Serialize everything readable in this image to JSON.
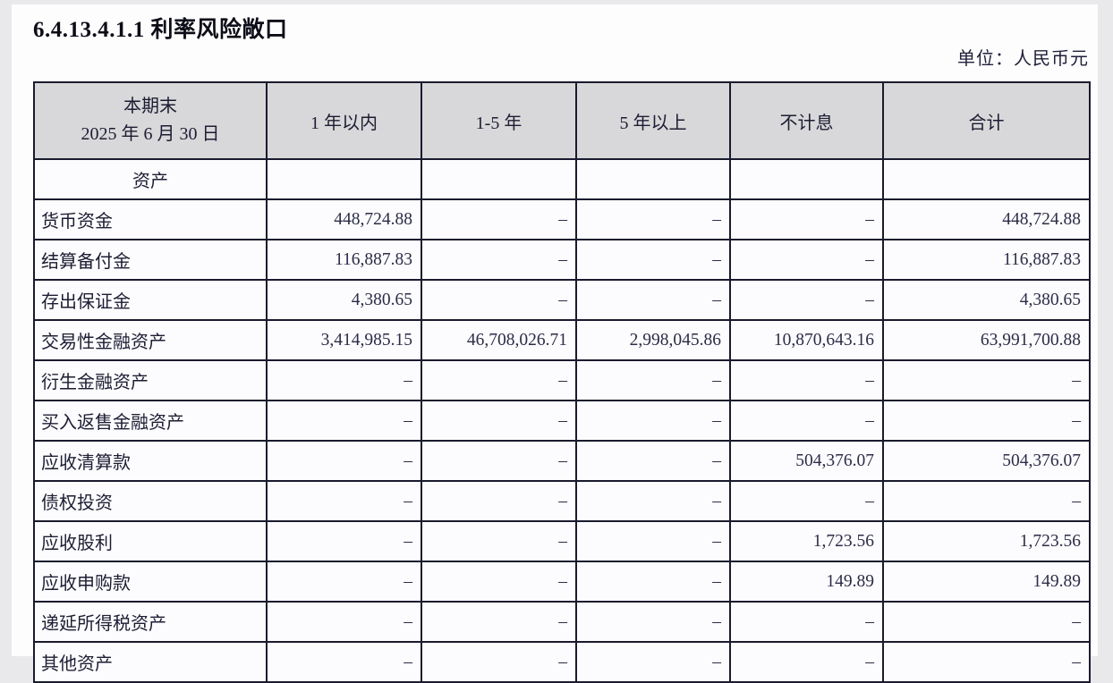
{
  "title": "6.4.13.4.1.1 利率风险敞口",
  "unit_label": "单位：人民币元",
  "colors": {
    "header_background": "#d8d8da",
    "table_border": "#1a1a2e",
    "cell_background": "#fcfcfe",
    "text": "#1d1d33"
  },
  "table": {
    "corner_header": {
      "line1": "本期末",
      "line2": "2025 年 6 月 30 日"
    },
    "columns": [
      "1 年以内",
      "1-5 年",
      "5 年以上",
      "不计息",
      "合计"
    ],
    "section_label": "资产",
    "rows": [
      {
        "label": "货币资金",
        "values": [
          "448,724.88",
          "–",
          "–",
          "–",
          "448,724.88"
        ]
      },
      {
        "label": "结算备付金",
        "values": [
          "116,887.83",
          "–",
          "–",
          "–",
          "116,887.83"
        ]
      },
      {
        "label": "存出保证金",
        "values": [
          "4,380.65",
          "–",
          "–",
          "–",
          "4,380.65"
        ]
      },
      {
        "label": "交易性金融资产",
        "values": [
          "3,414,985.15",
          "46,708,026.71",
          "2,998,045.86",
          "10,870,643.16",
          "63,991,700.88"
        ]
      },
      {
        "label": "衍生金融资产",
        "values": [
          "–",
          "–",
          "–",
          "–",
          "–"
        ]
      },
      {
        "label": "买入返售金融资产",
        "values": [
          "–",
          "–",
          "–",
          "–",
          "–"
        ]
      },
      {
        "label": "应收清算款",
        "values": [
          "–",
          "–",
          "–",
          "504,376.07",
          "504,376.07"
        ]
      },
      {
        "label": "债权投资",
        "values": [
          "–",
          "–",
          "–",
          "–",
          "–"
        ]
      },
      {
        "label": "应收股利",
        "values": [
          "–",
          "–",
          "–",
          "1,723.56",
          "1,723.56"
        ]
      },
      {
        "label": "应收申购款",
        "values": [
          "–",
          "–",
          "–",
          "149.89",
          "149.89"
        ]
      },
      {
        "label": "递延所得税资产",
        "values": [
          "–",
          "–",
          "–",
          "–",
          "–"
        ]
      },
      {
        "label": "其他资产",
        "values": [
          "–",
          "–",
          "–",
          "–",
          "–"
        ]
      }
    ]
  }
}
